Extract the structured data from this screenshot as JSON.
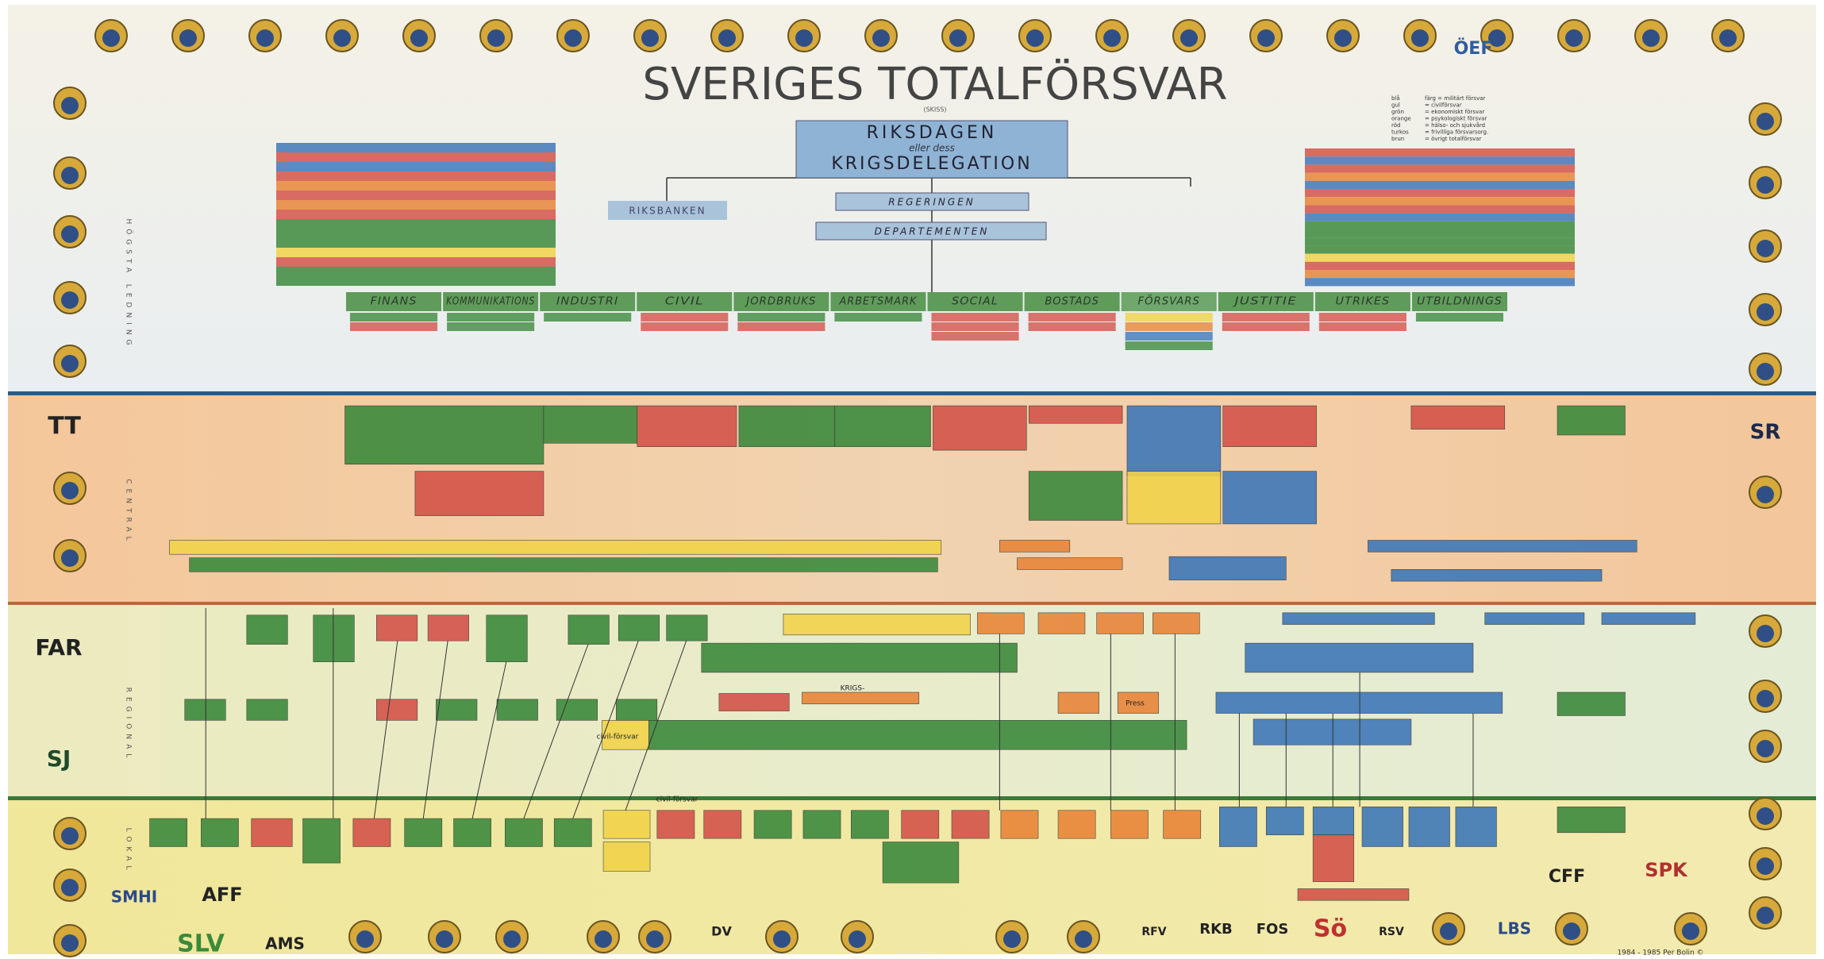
{
  "header": {
    "title": "SVERIGES TOTALFÖRSVAR",
    "subtitle": "(SKISS)"
  },
  "top": {
    "riksdagen": "RIKSDAGEN",
    "eller": "eller dess",
    "krigsdelegation": "KRIGSDELEGATION",
    "riksbanken": "RIKSBANKEN",
    "regeringen": "REGERINGEN",
    "departementen": "DEPARTEMENTEN"
  },
  "departments": [
    "FINANS",
    "KOMMUNIKATIONS",
    "INDUSTRI",
    "CIVIL",
    "JORDBRUKS",
    "ARBETSMARK",
    "SOCIAL",
    "BOSTADS",
    "FÖRSVARS",
    "JUSTITIE",
    "UTRIKES",
    "UTBILDNINGS"
  ],
  "levels": [
    "HÖGSTA LEDNING",
    "CENTRAL",
    "REGIONAL",
    "LOKAL"
  ],
  "legend": [
    {
      "term": "blå",
      "text": "färg = militärt försvar"
    },
    {
      "term": "gul",
      "text": "= civilförsvar"
    },
    {
      "term": "grön",
      "text": "= ekonomiskt försvar"
    },
    {
      "term": "orange",
      "text": "= psykologiskt försvar"
    },
    {
      "term": "röd",
      "text": "= hälso- och sjukvård"
    },
    {
      "term": "turkos",
      "text": "= frivilliga försvarsorg."
    },
    {
      "term": "brun",
      "text": "= övrigt totalförsvar"
    }
  ],
  "boxes": {
    "civilforsvar": "civil-försvar",
    "krigs": "KRIGS-",
    "civil2": "civil-försvar",
    "press": "Press"
  },
  "logos": [
    "TT",
    "FAR",
    "SJ",
    "SR",
    "ÖEF",
    "SMHI",
    "AFF",
    "CFF",
    "SPK",
    "SLV",
    "AMS",
    "DV",
    "RFV",
    "RKB",
    "FOS",
    "Sö",
    "RSV",
    "LBS"
  ],
  "footer": "1984 - 1985   Per Bolin ©"
}
